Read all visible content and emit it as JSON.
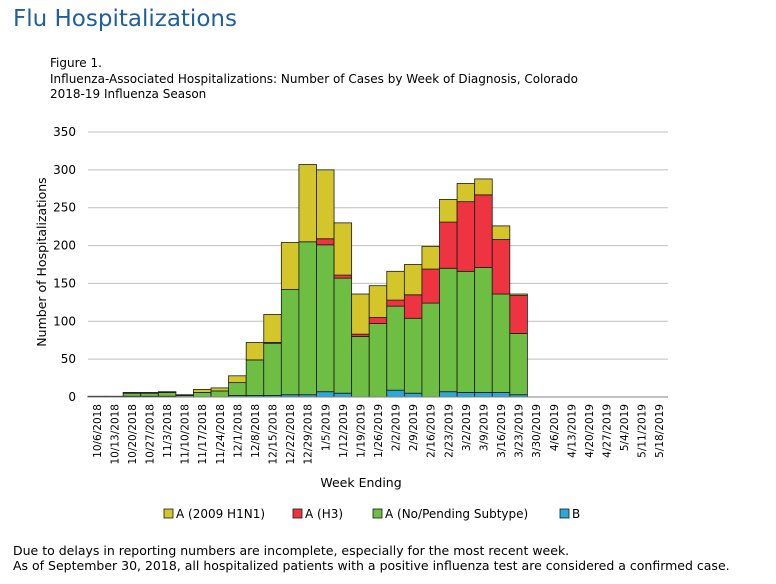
{
  "page": {
    "title": "Flu Hospitalizations",
    "figure_label": "Figure 1.",
    "figure_title_line1": "Influenza-Associated Hospitalizations: Number of  Cases by Week of Diagnosis, Colorado",
    "figure_title_line2": "2018-19  Influenza Season",
    "footnote_line1": "Due to delays in reporting numbers are incomplete, especially for the most recent week.",
    "footnote_line2": "As of September 30, 2018, all hospitalized patients with a positive influenza test are considered a confirmed case."
  },
  "chart_data": {
    "type": "bar",
    "stacked": true,
    "xlabel": "Week Ending",
    "ylabel": "Number of Hospitalizations",
    "ylim": [
      0,
      350
    ],
    "yticks": [
      0,
      50,
      100,
      150,
      200,
      250,
      300,
      350
    ],
    "grid": true,
    "legend_position": "bottom",
    "categories": [
      "10/6/2018",
      "10/13/2018",
      "10/20/2018",
      "10/27/2018",
      "11/3/2018",
      "11/10/2018",
      "11/17/2018",
      "11/24/2018",
      "12/1/2018",
      "12/8/2018",
      "12/15/2018",
      "12/22/2018",
      "12/29/2018",
      "1/5/2019",
      "1/12/2019",
      "1/19/2019",
      "1/26/2019",
      "2/2/2019",
      "2/9/2019",
      "2/16/2019",
      "2/23/2019",
      "3/2/2019",
      "3/9/2019",
      "3/16/2019",
      "3/23/2019",
      "3/30/2019",
      "4/6/2019",
      "4/13/2019",
      "4/20/2019",
      "4/27/2019",
      "5/4/2019",
      "5/11/2019",
      "5/18/2019"
    ],
    "tick_labels_shown": [
      "10/6/2018",
      "10/20/2018",
      "11/3/2018",
      "11/17/2018",
      "12/1/2018",
      "12/15/2018",
      "12/29/2018",
      "1/12/2019",
      "1/26/2019",
      "2/9/2019",
      "2/23/2019",
      "3/9/2019",
      "3/23/2019",
      "4/6/2019",
      "4/20/2019",
      "5/4/2019",
      "5/18/2019"
    ],
    "tick_labels_lower": [
      "10/13/2018",
      "10/27/2018",
      "11/10/2018",
      "11/24/2018",
      "12/8/2018",
      "12/22/2018",
      "1/5/2019",
      "1/19/2019",
      "2/2/2019",
      "2/16/2019",
      "3/2/2019",
      "3/16/2019",
      "3/30/2019",
      "4/13/2019",
      "4/27/2019",
      "5/11/2019"
    ],
    "series": [
      {
        "name": "B",
        "color": "#29a8d9",
        "values": [
          0,
          0,
          1,
          1,
          1,
          0,
          0,
          0,
          2,
          2,
          2,
          3,
          3,
          7,
          5,
          0,
          0,
          9,
          5,
          0,
          7,
          6,
          6,
          6,
          3,
          0,
          0,
          0,
          0,
          0,
          0,
          0,
          0
        ]
      },
      {
        "name": "A (No/Pending Subtype)",
        "color": "#6fbe44",
        "values": [
          1,
          1,
          4,
          4,
          5,
          2,
          6,
          8,
          17,
          47,
          69,
          139,
          202,
          194,
          152,
          80,
          97,
          111,
          99,
          124,
          163,
          160,
          165,
          130,
          81,
          0,
          0,
          0,
          0,
          0,
          0,
          0,
          0
        ]
      },
      {
        "name": "A (H3)",
        "color": "#ee3440",
        "values": [
          0,
          0,
          0,
          0,
          0,
          0,
          0,
          0,
          0,
          0,
          1,
          0,
          0,
          8,
          4,
          3,
          8,
          8,
          31,
          45,
          61,
          92,
          96,
          72,
          50,
          0,
          0,
          0,
          0,
          0,
          0,
          0,
          0
        ]
      },
      {
        "name": "A (2009 H1N1)",
        "color": "#d4c52a",
        "values": [
          0,
          0,
          1,
          1,
          1,
          1,
          4,
          4,
          9,
          23,
          37,
          62,
          102,
          91,
          69,
          53,
          42,
          38,
          40,
          30,
          30,
          24,
          21,
          18,
          2,
          0,
          0,
          0,
          0,
          0,
          0,
          0,
          0
        ]
      }
    ],
    "legend_order": [
      "A (2009 H1N1)",
      "A (H3)",
      "A (No/Pending Subtype)",
      "B"
    ]
  }
}
